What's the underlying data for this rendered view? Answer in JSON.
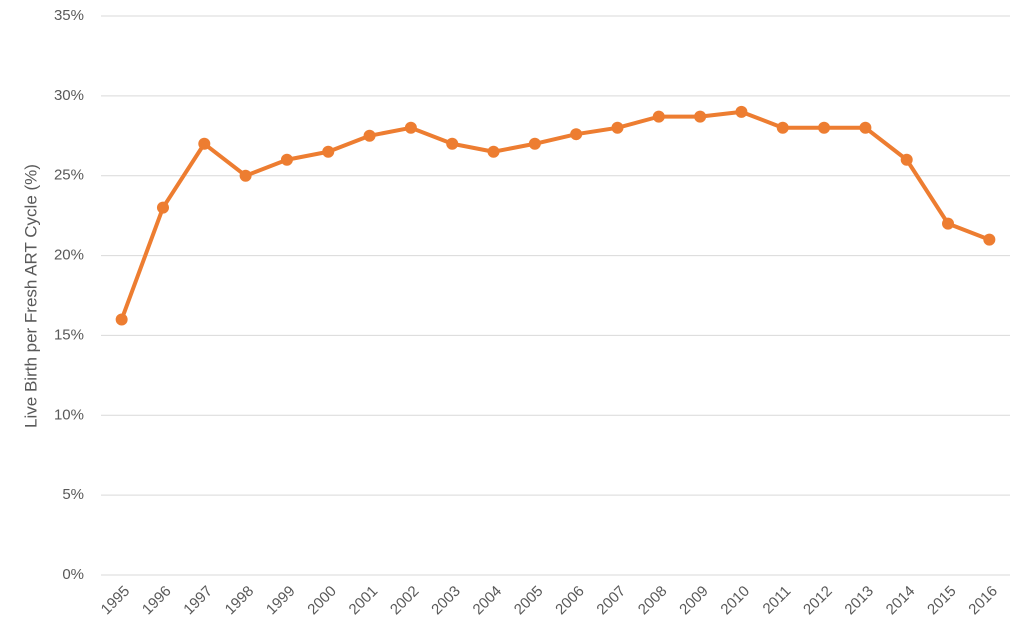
{
  "chart_data": {
    "type": "line",
    "y_label": "Live Birth per Fresh ART Cycle (%)",
    "categories": [
      "1995",
      "1996",
      "1997",
      "1998",
      "1999",
      "2000",
      "2001",
      "2002",
      "2003",
      "2004",
      "2005",
      "2006",
      "2007",
      "2008",
      "2009",
      "2010",
      "2011",
      "2012",
      "2013",
      "2014",
      "2015",
      "2016"
    ],
    "series": [
      {
        "color": "#ed7d31",
        "values": [
          16,
          23,
          27,
          25,
          26,
          26.5,
          27.5,
          28,
          27,
          26.5,
          27,
          27.6,
          28,
          28.7,
          28.7,
          29,
          28,
          28,
          28,
          26,
          22,
          21
        ]
      }
    ],
    "ylim": [
      0,
      35
    ],
    "yticks": [
      {
        "value": 0,
        "label": "0%"
      },
      {
        "value": 5,
        "label": "5%"
      },
      {
        "value": 10,
        "label": "10%"
      },
      {
        "value": 15,
        "label": "15%"
      },
      {
        "value": 20,
        "label": "20%"
      },
      {
        "value": 25,
        "label": "25%"
      },
      {
        "value": 30,
        "label": "30%"
      },
      {
        "value": 35,
        "label": "35%"
      }
    ],
    "grid": true
  }
}
